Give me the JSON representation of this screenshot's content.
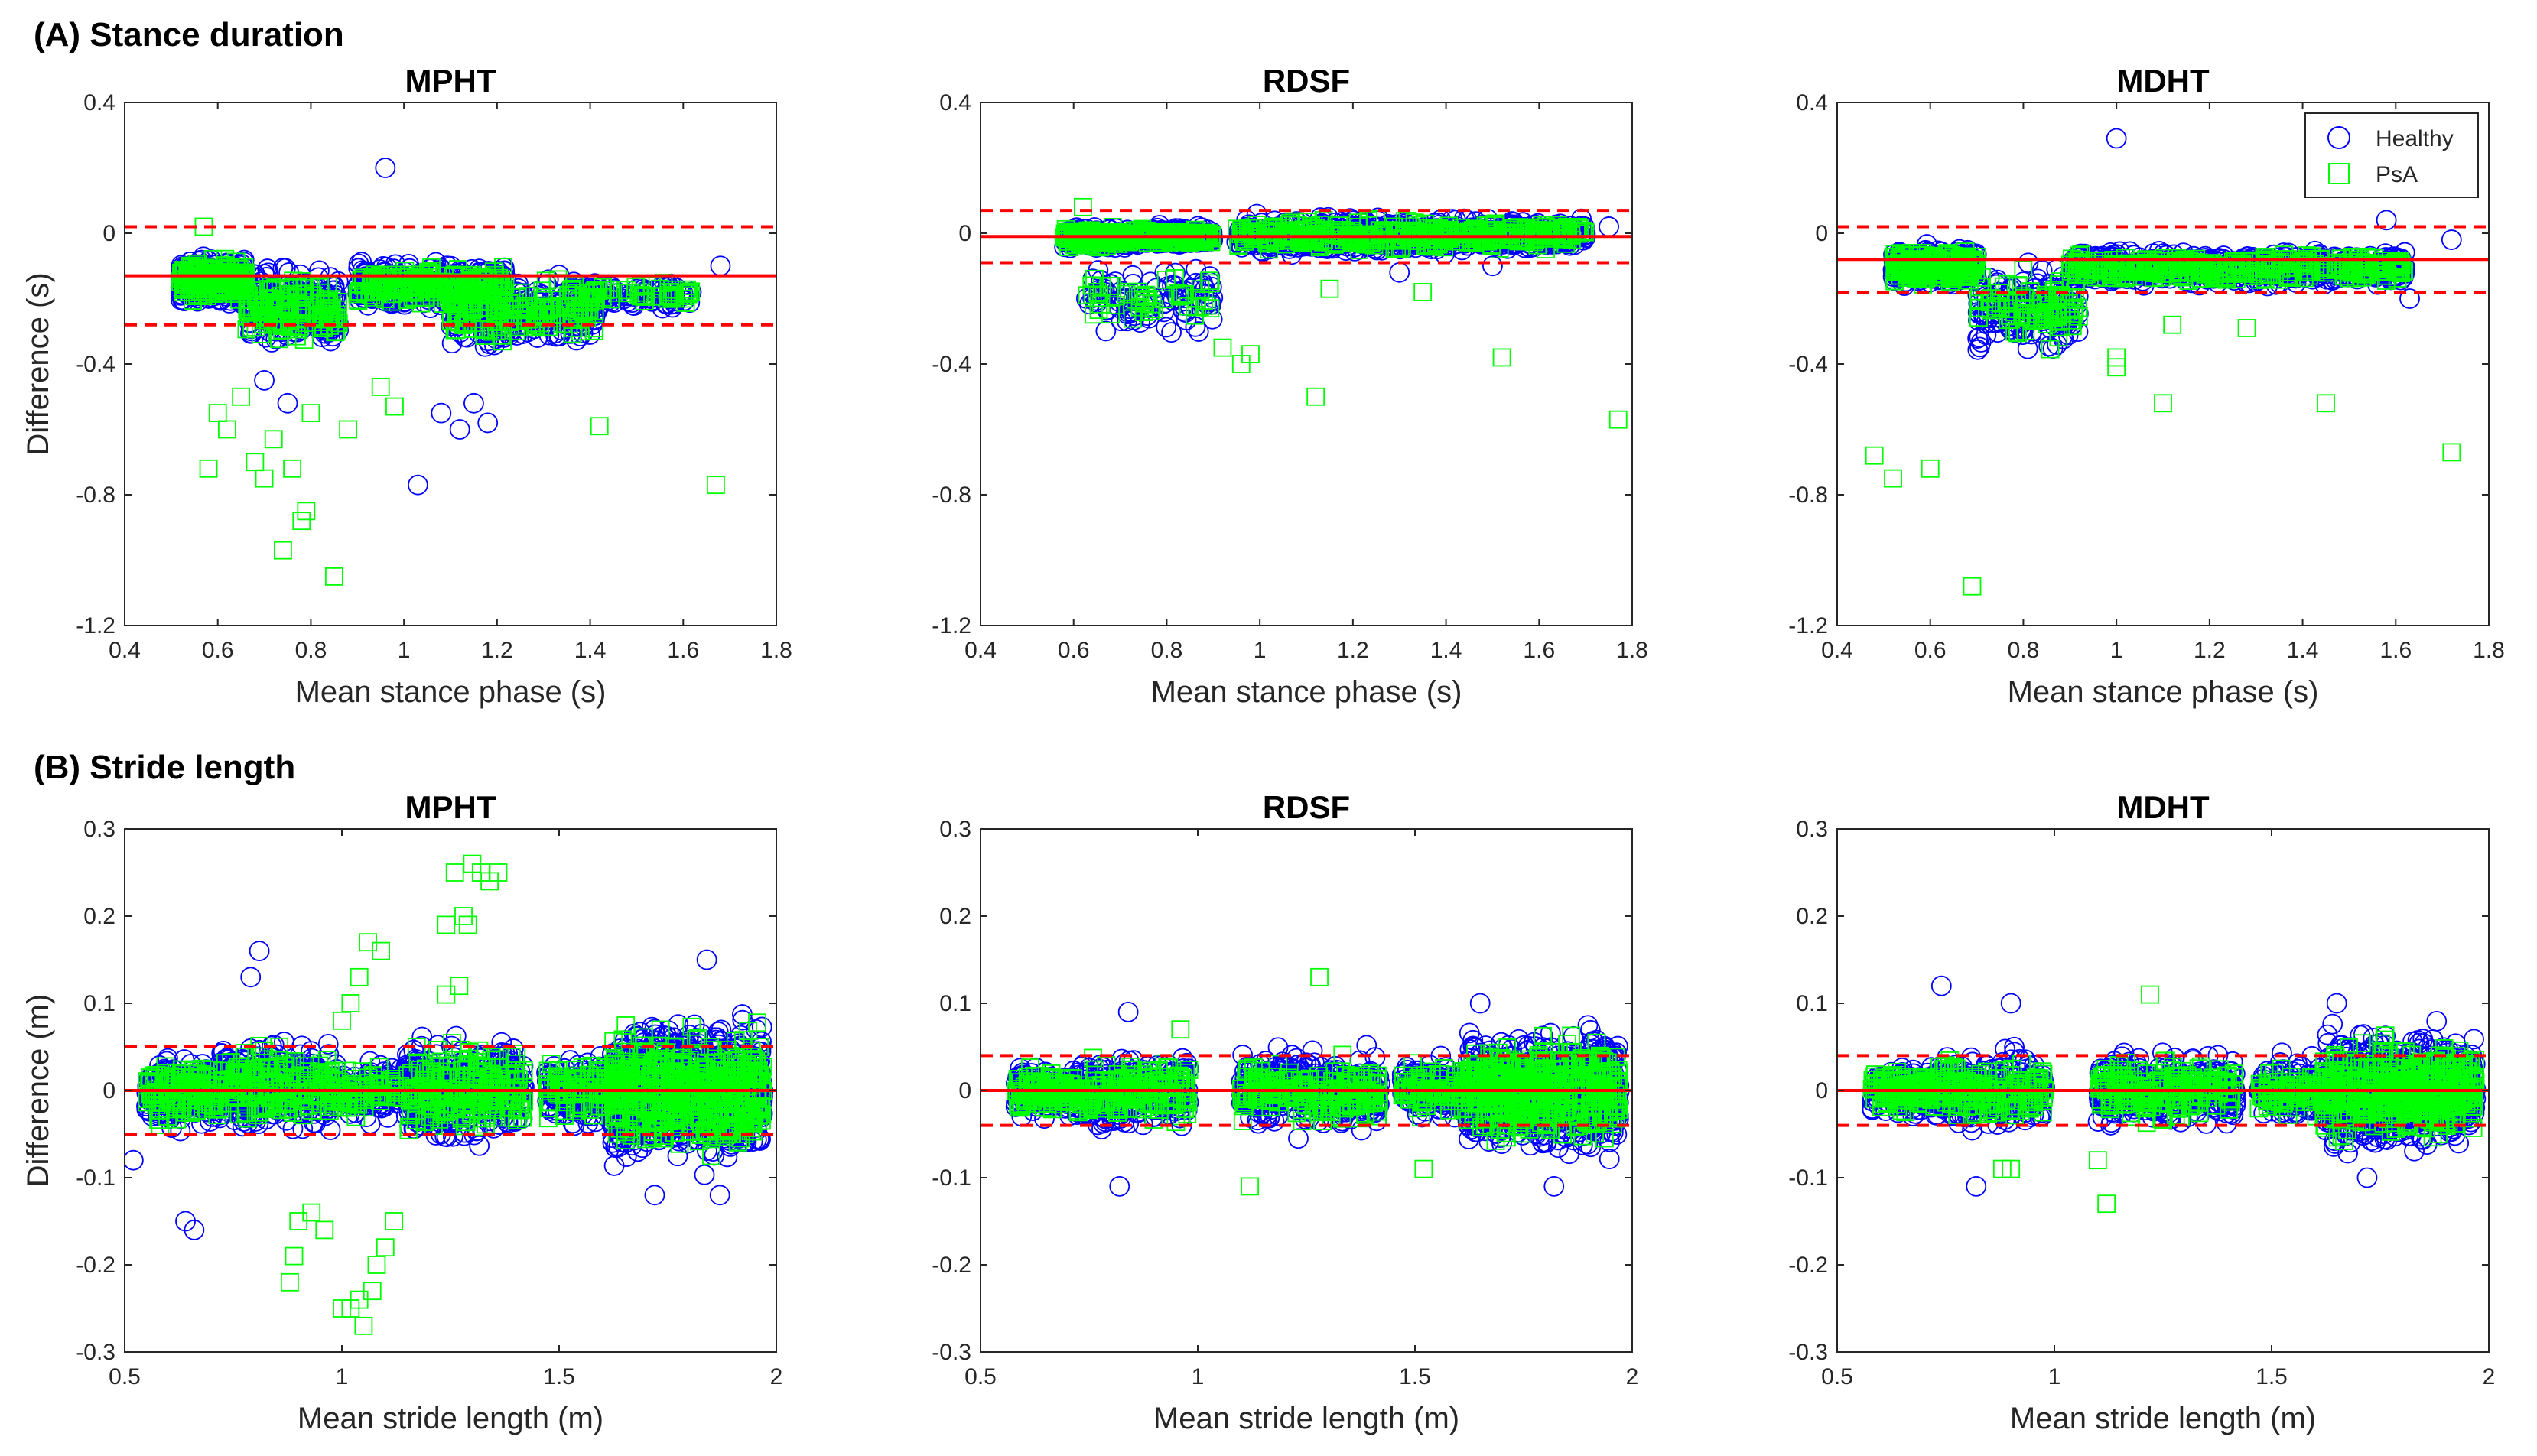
{
  "colors": {
    "healthy": "#0000ff",
    "psa": "#00ff00",
    "mean_line": "#ff0000",
    "loa_line": "#ff0000",
    "axis": "#262626"
  },
  "sections": [
    {
      "label": "(A) Stance duration"
    },
    {
      "label": "(B) Stride length"
    }
  ],
  "legend": {
    "entries": [
      "Healthy",
      "PsA"
    ],
    "markers": [
      "circle",
      "square"
    ]
  },
  "chart_data": [
    {
      "type": "scatter",
      "section": "(A) Stance duration",
      "title": "MPHT",
      "xlabel": "Mean stance phase (s)",
      "ylabel": "Difference (s)",
      "xlim": [
        0.4,
        1.8
      ],
      "ylim": [
        -1.2,
        0.4
      ],
      "xticks": [
        0.4,
        0.6,
        0.8,
        1.0,
        1.2,
        1.4,
        1.6,
        1.8
      ],
      "xtick_labels": [
        "0.4",
        "0.6",
        "0.8",
        "1",
        "1.2",
        "1.4",
        "1.6",
        "1.8"
      ],
      "yticks": [
        0.4,
        0.0,
        -0.4,
        -0.8,
        -1.2
      ],
      "ytick_labels": [
        "0.4",
        "0",
        "-0.4",
        "-0.8",
        "-1.2"
      ],
      "mean_bias": -0.13,
      "loa": [
        0.02,
        -0.28
      ],
      "legend_shown": false,
      "clusters": [
        {
          "x": [
            0.52,
            0.66
          ],
          "y": [
            -0.24,
            -0.05
          ],
          "n": 420
        },
        {
          "x": [
            0.66,
            0.86
          ],
          "y": [
            -0.4,
            -0.06
          ],
          "n": 260
        },
        {
          "x": [
            0.9,
            1.22
          ],
          "y": [
            -0.26,
            -0.06
          ],
          "n": 380
        },
        {
          "x": [
            1.1,
            1.42
          ],
          "y": [
            -0.38,
            -0.1
          ],
          "n": 280
        },
        {
          "x": [
            1.35,
            1.62
          ],
          "y": [
            -0.25,
            -0.12
          ],
          "n": 90
        }
      ],
      "series": [
        {
          "name": "Healthy",
          "outliers": [
            [
              0.96,
              0.2
            ],
            [
              1.03,
              -0.77
            ],
            [
              1.08,
              -0.55
            ],
            [
              1.12,
              -0.6
            ],
            [
              1.15,
              -0.52
            ],
            [
              1.18,
              -0.58
            ],
            [
              1.68,
              -0.1
            ],
            [
              0.7,
              -0.45
            ],
            [
              0.75,
              -0.52
            ]
          ]
        },
        {
          "name": "PsA",
          "outliers": [
            [
              0.57,
              0.02
            ],
            [
              0.58,
              -0.72
            ],
            [
              0.6,
              -0.55
            ],
            [
              0.62,
              -0.6
            ],
            [
              0.65,
              -0.5
            ],
            [
              0.68,
              -0.7
            ],
            [
              0.7,
              -0.75
            ],
            [
              0.72,
              -0.63
            ],
            [
              0.74,
              -0.97
            ],
            [
              0.76,
              -0.72
            ],
            [
              0.78,
              -0.88
            ],
            [
              0.79,
              -0.85
            ],
            [
              0.85,
              -1.05
            ],
            [
              0.8,
              -0.55
            ],
            [
              0.88,
              -0.6
            ],
            [
              0.95,
              -0.47
            ],
            [
              0.98,
              -0.53
            ],
            [
              1.42,
              -0.59
            ],
            [
              1.67,
              -0.77
            ],
            [
              1.55,
              -0.17
            ],
            [
              1.6,
              -0.2
            ]
          ]
        }
      ]
    },
    {
      "type": "scatter",
      "section": "(A) Stance duration",
      "title": "RDSF",
      "xlabel": "Mean stance phase (s)",
      "ylabel": "",
      "xlim": [
        0.4,
        1.8
      ],
      "ylim": [
        -1.2,
        0.4
      ],
      "xticks": [
        0.4,
        0.6,
        0.8,
        1.0,
        1.2,
        1.4,
        1.6,
        1.8
      ],
      "xtick_labels": [
        "0.4",
        "0.6",
        "0.8",
        "1",
        "1.2",
        "1.4",
        "1.6",
        "1.8"
      ],
      "yticks": [
        0.4,
        0.0,
        -0.4,
        -0.8,
        -1.2
      ],
      "ytick_labels": [
        "0.4",
        "0",
        "-0.4",
        "-0.8",
        "-1.2"
      ],
      "mean_bias": -0.01,
      "loa": [
        0.07,
        -0.09
      ],
      "legend_shown": false,
      "clusters": [
        {
          "x": [
            0.58,
            0.72
          ],
          "y": [
            -0.06,
            0.03
          ],
          "n": 300
        },
        {
          "x": [
            0.72,
            0.9
          ],
          "y": [
            -0.05,
            0.03
          ],
          "n": 220
        },
        {
          "x": [
            0.62,
            0.9
          ],
          "y": [
            -0.35,
            -0.05
          ],
          "n": 90
        },
        {
          "x": [
            0.95,
            1.7
          ],
          "y": [
            -0.08,
            0.07
          ],
          "n": 700
        }
      ],
      "series": [
        {
          "name": "Healthy",
          "outliers": [
            [
              1.75,
              0.02
            ],
            [
              1.5,
              -0.1
            ],
            [
              1.3,
              -0.12
            ]
          ]
        },
        {
          "name": "PsA",
          "outliers": [
            [
              0.62,
              0.08
            ],
            [
              0.92,
              -0.35
            ],
            [
              0.96,
              -0.4
            ],
            [
              0.98,
              -0.37
            ],
            [
              1.12,
              -0.5
            ],
            [
              1.52,
              -0.38
            ],
            [
              1.77,
              -0.57
            ],
            [
              1.15,
              -0.17
            ],
            [
              1.35,
              -0.18
            ]
          ]
        }
      ]
    },
    {
      "type": "scatter",
      "section": "(A) Stance duration",
      "title": "MDHT",
      "xlabel": "Mean stance phase (s)",
      "ylabel": "",
      "xlim": [
        0.4,
        1.8
      ],
      "ylim": [
        -1.2,
        0.4
      ],
      "xticks": [
        0.4,
        0.6,
        0.8,
        1.0,
        1.2,
        1.4,
        1.6,
        1.8
      ],
      "xtick_labels": [
        "0.4",
        "0.6",
        "0.8",
        "1",
        "1.2",
        "1.4",
        "1.6",
        "1.8"
      ],
      "yticks": [
        0.4,
        0.0,
        -0.4,
        -0.8,
        -1.2
      ],
      "ytick_labels": [
        "0.4",
        "0",
        "-0.4",
        "-0.8",
        "-1.2"
      ],
      "mean_bias": -0.08,
      "loa": [
        0.02,
        -0.18
      ],
      "legend_shown": true,
      "clusters": [
        {
          "x": [
            0.52,
            0.7
          ],
          "y": [
            -0.18,
            -0.02
          ],
          "n": 380
        },
        {
          "x": [
            0.7,
            0.92
          ],
          "y": [
            -0.42,
            -0.05
          ],
          "n": 160
        },
        {
          "x": [
            0.9,
            1.62
          ],
          "y": [
            -0.18,
            -0.03
          ],
          "n": 650
        }
      ],
      "series": [
        {
          "name": "Healthy",
          "outliers": [
            [
              1.0,
              0.29
            ],
            [
              1.58,
              0.04
            ],
            [
              1.63,
              -0.2
            ],
            [
              1.72,
              -0.02
            ]
          ]
        },
        {
          "name": "PsA",
          "outliers": [
            [
              0.48,
              -0.68
            ],
            [
              0.52,
              -0.75
            ],
            [
              0.6,
              -0.72
            ],
            [
              0.69,
              -1.08
            ],
            [
              1.0,
              -0.38
            ],
            [
              1.0,
              -0.41
            ],
            [
              1.1,
              -0.52
            ],
            [
              1.45,
              -0.52
            ],
            [
              1.72,
              -0.67
            ],
            [
              1.12,
              -0.28
            ],
            [
              1.28,
              -0.29
            ]
          ]
        }
      ]
    },
    {
      "type": "scatter",
      "section": "(B) Stride length",
      "title": "MPHT",
      "xlabel": "Mean stride length (m)",
      "ylabel": "Difference (m)",
      "xlim": [
        0.5,
        2.0
      ],
      "ylim": [
        -0.3,
        0.3
      ],
      "xticks": [
        0.5,
        1.0,
        1.5,
        2.0
      ],
      "xtick_labels": [
        "0.5",
        "1",
        "1.5",
        "2"
      ],
      "yticks": [
        0.3,
        0.2,
        0.1,
        0.0,
        -0.1,
        -0.2,
        -0.3
      ],
      "ytick_labels": [
        "0.3",
        "0.2",
        "0.1",
        "0",
        "-0.1",
        "-0.2",
        "-0.3"
      ],
      "mean_bias": 0.0,
      "loa": [
        0.05,
        -0.05
      ],
      "legend_shown": false,
      "clusters": [
        {
          "x": [
            0.55,
            0.72
          ],
          "y": [
            -0.06,
            0.06
          ],
          "n": 220
        },
        {
          "x": [
            0.72,
            0.98
          ],
          "y": [
            -0.07,
            0.08
          ],
          "n": 320
        },
        {
          "x": [
            0.98,
            1.15
          ],
          "y": [
            -0.05,
            0.05
          ],
          "n": 130
        },
        {
          "x": [
            1.15,
            1.42
          ],
          "y": [
            -0.08,
            0.08
          ],
          "n": 380
        },
        {
          "x": [
            1.47,
            1.62
          ],
          "y": [
            -0.06,
            0.06
          ],
          "n": 160
        },
        {
          "x": [
            1.62,
            1.97
          ],
          "y": [
            -0.11,
            0.11
          ],
          "n": 900
        }
      ],
      "series": [
        {
          "name": "Healthy",
          "outliers": [
            [
              0.52,
              -0.08
            ],
            [
              0.64,
              -0.15
            ],
            [
              0.66,
              -0.16
            ],
            [
              0.81,
              0.16
            ],
            [
              0.79,
              0.13
            ],
            [
              1.84,
              0.15
            ],
            [
              1.72,
              -0.12
            ],
            [
              1.87,
              -0.12
            ]
          ]
        },
        {
          "name": "PsA",
          "outliers": [
            [
              0.88,
              -0.22
            ],
            [
              0.89,
              -0.19
            ],
            [
              0.9,
              -0.15
            ],
            [
              0.93,
              -0.14
            ],
            [
              0.96,
              -0.16
            ],
            [
              1.0,
              -0.25
            ],
            [
              1.02,
              -0.25
            ],
            [
              1.04,
              -0.24
            ],
            [
              1.05,
              -0.27
            ],
            [
              1.07,
              -0.23
            ],
            [
              1.08,
              -0.2
            ],
            [
              1.1,
              -0.18
            ],
            [
              1.12,
              -0.15
            ],
            [
              1.09,
              0.16
            ],
            [
              1.06,
              0.17
            ],
            [
              1.04,
              0.13
            ],
            [
              1.02,
              0.1
            ],
            [
              1.0,
              0.08
            ],
            [
              1.24,
              0.19
            ],
            [
              1.26,
              0.25
            ],
            [
              1.28,
              0.2
            ],
            [
              1.3,
              0.26
            ],
            [
              1.32,
              0.25
            ],
            [
              1.34,
              0.24
            ],
            [
              1.36,
              0.25
            ],
            [
              1.27,
              0.12
            ],
            [
              1.24,
              0.11
            ],
            [
              1.29,
              0.19
            ]
          ]
        }
      ]
    },
    {
      "type": "scatter",
      "section": "(B) Stride length",
      "title": "RDSF",
      "xlabel": "Mean stride length (m)",
      "ylabel": "",
      "xlim": [
        0.5,
        2.0
      ],
      "ylim": [
        -0.3,
        0.3
      ],
      "xticks": [
        0.5,
        1.0,
        1.5,
        2.0
      ],
      "xtick_labels": [
        "0.5",
        "1",
        "1.5",
        "2"
      ],
      "yticks": [
        0.3,
        0.2,
        0.1,
        0.0,
        -0.1,
        -0.2,
        -0.3
      ],
      "ytick_labels": [
        "0.3",
        "0.2",
        "0.1",
        "0",
        "-0.1",
        "-0.2",
        "-0.3"
      ],
      "mean_bias": 0.0,
      "loa": [
        0.04,
        -0.04
      ],
      "legend_shown": false,
      "clusters": [
        {
          "x": [
            0.58,
            0.72
          ],
          "y": [
            -0.04,
            0.04
          ],
          "n": 200
        },
        {
          "x": [
            0.72,
            0.98
          ],
          "y": [
            -0.06,
            0.06
          ],
          "n": 300
        },
        {
          "x": [
            1.1,
            1.42
          ],
          "y": [
            -0.06,
            0.06
          ],
          "n": 350
        },
        {
          "x": [
            1.47,
            1.62
          ],
          "y": [
            -0.05,
            0.05
          ],
          "n": 150
        },
        {
          "x": [
            1.62,
            1.97
          ],
          "y": [
            -0.09,
            0.09
          ],
          "n": 850
        }
      ],
      "series": [
        {
          "name": "Healthy",
          "outliers": [
            [
              0.82,
              -0.11
            ],
            [
              0.84,
              0.09
            ],
            [
              1.82,
              -0.11
            ],
            [
              1.65,
              0.1
            ]
          ]
        },
        {
          "name": "PsA",
          "outliers": [
            [
              1.12,
              -0.11
            ],
            [
              1.28,
              0.13
            ],
            [
              1.52,
              -0.09
            ],
            [
              0.96,
              0.07
            ]
          ]
        }
      ]
    },
    {
      "type": "scatter",
      "section": "(B) Stride length",
      "title": "MDHT",
      "xlabel": "Mean stride length (m)",
      "ylabel": "",
      "xlim": [
        0.5,
        2.0
      ],
      "ylim": [
        -0.3,
        0.3
      ],
      "xticks": [
        0.5,
        1.0,
        1.5,
        2.0
      ],
      "xtick_labels": [
        "0.5",
        "1",
        "1.5",
        "2"
      ],
      "yticks": [
        0.3,
        0.2,
        0.1,
        0.0,
        -0.1,
        -0.2,
        -0.3
      ],
      "ytick_labels": [
        "0.3",
        "0.2",
        "0.1",
        "0",
        "-0.1",
        "-0.2",
        "-0.3"
      ],
      "mean_bias": 0.0,
      "loa": [
        0.04,
        -0.04
      ],
      "legend_shown": false,
      "clusters": [
        {
          "x": [
            0.58,
            0.72
          ],
          "y": [
            -0.04,
            0.04
          ],
          "n": 200
        },
        {
          "x": [
            0.72,
            0.98
          ],
          "y": [
            -0.06,
            0.06
          ],
          "n": 280
        },
        {
          "x": [
            1.1,
            1.42
          ],
          "y": [
            -0.06,
            0.06
          ],
          "n": 350
        },
        {
          "x": [
            1.47,
            1.62
          ],
          "y": [
            -0.05,
            0.05
          ],
          "n": 150
        },
        {
          "x": [
            1.62,
            1.97
          ],
          "y": [
            -0.09,
            0.09
          ],
          "n": 850
        }
      ],
      "series": [
        {
          "name": "Healthy",
          "outliers": [
            [
              0.74,
              0.12
            ],
            [
              0.82,
              -0.11
            ],
            [
              0.9,
              0.1
            ],
            [
              1.72,
              -0.1
            ],
            [
              1.65,
              0.1
            ]
          ]
        },
        {
          "name": "PsA",
          "outliers": [
            [
              0.88,
              -0.09
            ],
            [
              0.9,
              -0.09
            ],
            [
              1.12,
              -0.13
            ],
            [
              1.22,
              0.11
            ],
            [
              1.1,
              -0.08
            ]
          ]
        }
      ]
    }
  ]
}
